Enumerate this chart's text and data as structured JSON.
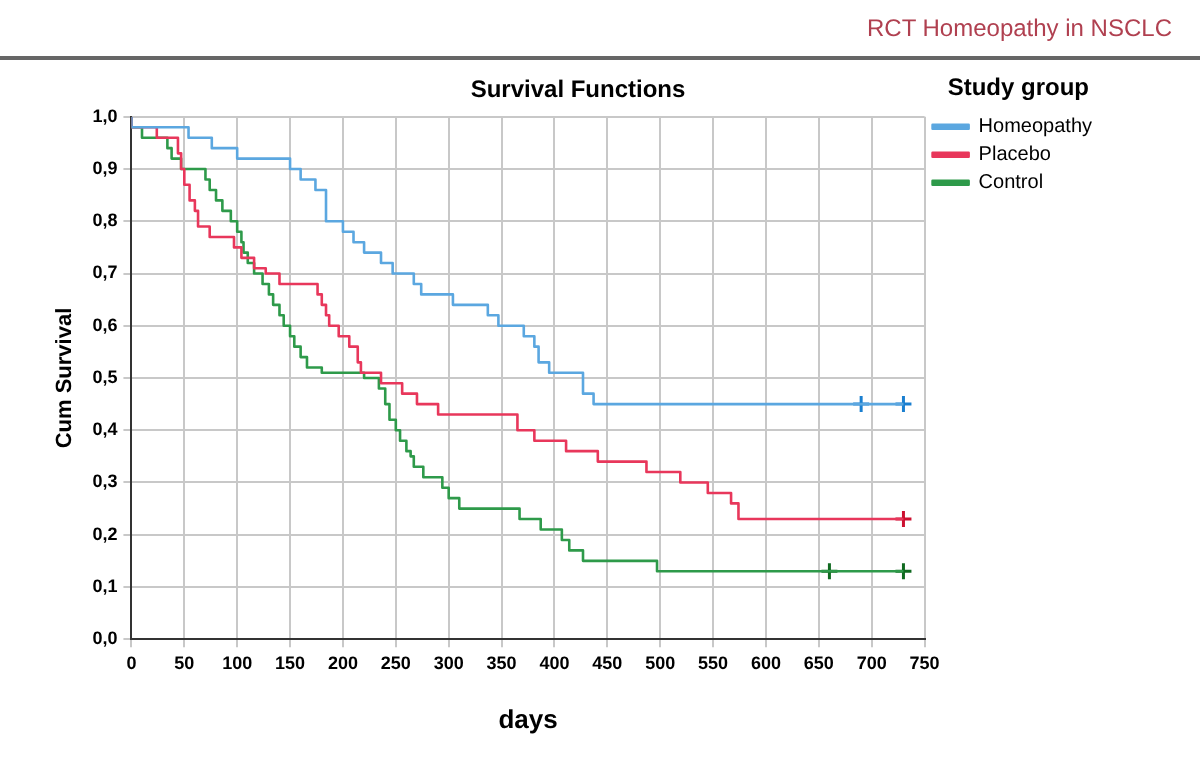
{
  "chart_data": {
    "type": "step",
    "title": "Survival Functions",
    "xlabel": "days",
    "ylabel": "Cum Survival",
    "legend_title": "Study group",
    "annotations": [
      "RCT Homeopathy in NSCLC"
    ],
    "xlim": [
      0,
      750
    ],
    "xticks": [
      0,
      50,
      100,
      150,
      200,
      250,
      300,
      350,
      400,
      450,
      500,
      550,
      600,
      650,
      700,
      750
    ],
    "ylim": [
      0,
      1
    ],
    "yticks": [
      {
        "value": 0,
        "label": "0,0"
      },
      {
        "value": 0.1,
        "label": "0,1"
      },
      {
        "value": 0.2,
        "label": "0,2"
      },
      {
        "value": 0.3,
        "label": "0,3"
      },
      {
        "value": 0.4,
        "label": "0,4"
      },
      {
        "value": 0.5,
        "label": "0,5"
      },
      {
        "value": 0.6,
        "label": "0,6"
      },
      {
        "value": 0.7,
        "label": "0,7"
      },
      {
        "value": 0.8,
        "label": "0,8"
      },
      {
        "value": 0.9,
        "label": "0,9"
      },
      {
        "value": 1,
        "label": "1,0"
      }
    ],
    "grid": true,
    "legend": "top right",
    "series": [
      {
        "name": "Homeopathy",
        "color": "#5ba7e0",
        "x": [
          0,
          54,
          76,
          100,
          150,
          160,
          174,
          184,
          200,
          210,
          220,
          236,
          247,
          267,
          274,
          304,
          337,
          347,
          371,
          381,
          385,
          395,
          427,
          437,
          497,
          730
        ],
        "values": [
          1,
          0.98,
          0.96,
          0.94,
          0.92,
          0.9,
          0.88,
          0.86,
          0.8,
          0.78,
          0.76,
          0.74,
          0.72,
          0.7,
          0.68,
          0.66,
          0.64,
          0.62,
          0.6,
          0.58,
          0.56,
          0.53,
          0.51,
          0.47,
          0.45,
          0.45
        ]
      },
      {
        "name": "Placebo",
        "color": "#e8375b",
        "x": [
          0,
          24,
          44,
          47,
          50,
          55,
          60,
          63,
          74,
          97,
          104,
          116,
          127,
          140,
          176,
          180,
          184,
          187,
          196,
          206,
          214,
          217,
          236,
          256,
          270,
          290,
          365,
          381,
          411,
          441,
          487,
          519,
          545,
          567,
          574,
          619,
          730
        ],
        "values": [
          1,
          0.98,
          0.96,
          0.93,
          0.9,
          0.87,
          0.84,
          0.82,
          0.79,
          0.77,
          0.75,
          0.73,
          0.71,
          0.7,
          0.68,
          0.66,
          0.64,
          0.62,
          0.6,
          0.58,
          0.56,
          0.53,
          0.51,
          0.49,
          0.47,
          0.45,
          0.43,
          0.4,
          0.38,
          0.36,
          0.34,
          0.32,
          0.3,
          0.28,
          0.26,
          0.23,
          0.23
        ]
      },
      {
        "name": "Control",
        "color": "#2e9a4a",
        "x": [
          0,
          10,
          34,
          38,
          47,
          70,
          74,
          80,
          86,
          94,
          100,
          104,
          106,
          110,
          116,
          124,
          130,
          134,
          140,
          144,
          150,
          154,
          160,
          166,
          180,
          220,
          234,
          240,
          244,
          250,
          254,
          260,
          264,
          267,
          276,
          294,
          300,
          310,
          367,
          387,
          407,
          414,
          427,
          497,
          579,
          730
        ],
        "values": [
          1,
          0.98,
          0.96,
          0.94,
          0.92,
          0.9,
          0.88,
          0.86,
          0.84,
          0.82,
          0.8,
          0.78,
          0.76,
          0.74,
          0.72,
          0.7,
          0.68,
          0.66,
          0.64,
          0.62,
          0.6,
          0.58,
          0.56,
          0.54,
          0.52,
          0.51,
          0.5,
          0.48,
          0.45,
          0.42,
          0.4,
          0.38,
          0.36,
          0.35,
          0.33,
          0.31,
          0.29,
          0.27,
          0.25,
          0.23,
          0.21,
          0.19,
          0.17,
          0.15,
          0.13,
          0.13
        ]
      },
      {
        "type": "scatter",
        "marker": "cross",
        "color": "#1a7fd0",
        "x": [
          690,
          730
        ],
        "values": [
          0.45,
          0.45
        ]
      },
      {
        "type": "scatter",
        "marker": "cross",
        "color": "#cc1030",
        "x": [
          730
        ],
        "values": [
          0.23
        ]
      },
      {
        "type": "scatter",
        "marker": "cross",
        "color": "#106a20",
        "x": [
          660,
          730
        ],
        "values": [
          0.13,
          0.13
        ]
      }
    ]
  }
}
